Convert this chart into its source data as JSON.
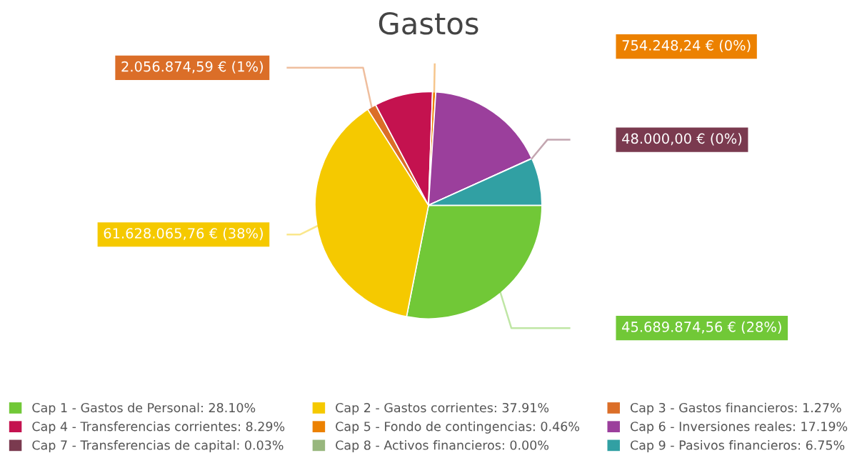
{
  "chart_data": {
    "type": "pie",
    "title": "Gastos",
    "categories": [
      "Cap 1 - Gastos de Personal: 28.10%",
      "Cap 2 - Gastos corrientes: 37.91%",
      "Cap 3 - Gastos financieros: 1.27%",
      "Cap 4 - Transferencias corrientes: 8.29%",
      "Cap 5 - Fondo de contingencias: 0.46%",
      "Cap 6 - Inversiones reales: 17.19%",
      "Cap 7 - Transferencias de capital: 0.03%",
      "Cap 8 - Activos financieros: 0.00%",
      "Cap 9 - Pasivos financieros: 6.75%"
    ],
    "values": [
      28.1,
      37.91,
      1.27,
      8.29,
      0.46,
      17.19,
      0.03,
      0.0,
      6.75
    ],
    "colors": [
      "#71c837",
      "#f5c900",
      "#db6e28",
      "#c4124f",
      "#ec8100",
      "#9b3f9c",
      "#7a3a4f",
      "#98b77e",
      "#31a0a3"
    ],
    "value_labels": [
      "45.689.874,56 € (28%)",
      "61.628.065,76 € (38%)",
      "2.056.874,59 € (1%)",
      null,
      "754.248,24 € (0%)",
      null,
      "48.000,00 € (0%)",
      null,
      null
    ],
    "legend": "bottom"
  }
}
